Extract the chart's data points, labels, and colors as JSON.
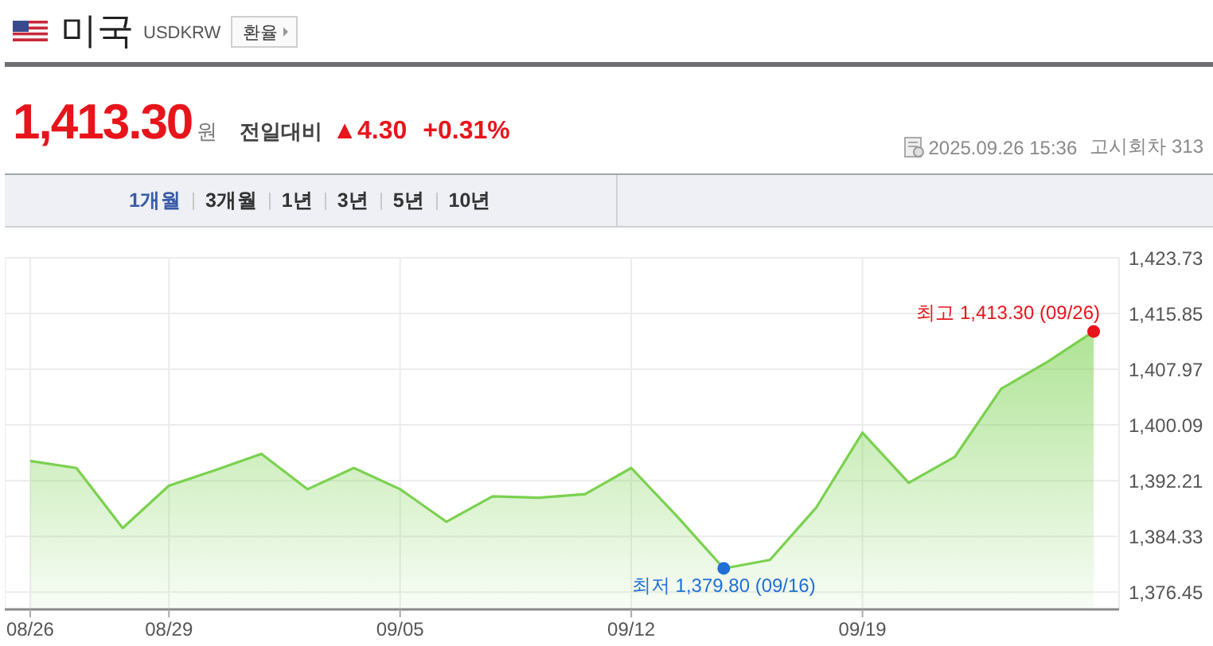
{
  "chart_data": {
    "type": "area",
    "title": "미국",
    "subtitle": "USDKRW",
    "categories": [
      "08/26",
      null,
      null,
      "08/29",
      null,
      null,
      null,
      null,
      "09/05",
      null,
      null,
      null,
      null,
      "09/12",
      null,
      null,
      null,
      null,
      "09/19",
      null,
      null,
      null,
      null,
      null
    ],
    "series": [
      {
        "color": "#7ad14f",
        "values": [
          1395.0,
          1394.0,
          1385.5,
          1391.5,
          1393.7,
          1396.0,
          1391.0,
          1394.0,
          1391.0,
          1386.4,
          1390.0,
          1389.8,
          1390.3,
          1394.0,
          1387.1,
          1379.8,
          1381.0,
          1388.4,
          1399.0,
          1391.9,
          1395.6,
          1405.2,
          1409.0,
          1413.3
        ]
      },
      {
        "type": "scatter",
        "colors": [
          null,
          null,
          null,
          null,
          null,
          null,
          null,
          null,
          null,
          null,
          null,
          null,
          null,
          null,
          null,
          "#1f6fd6",
          null,
          null,
          null,
          null,
          null,
          null,
          null,
          "#e8141b"
        ],
        "values": [
          null,
          null,
          null,
          null,
          null,
          null,
          null,
          null,
          null,
          null,
          null,
          null,
          null,
          null,
          null,
          1379.8,
          null,
          null,
          null,
          null,
          null,
          null,
          null,
          1413.3
        ]
      }
    ],
    "ylim": [
      1374.0,
      1423.73
    ],
    "yticks": [
      {
        "value": 1376.45,
        "label": "1,376.45"
      },
      {
        "value": 1384.33,
        "label": "1,384.33"
      },
      {
        "value": 1392.21,
        "label": "1,392.21"
      },
      {
        "value": 1400.09,
        "label": "1,400.09"
      },
      {
        "value": 1407.97,
        "label": "1,407.97"
      },
      {
        "value": 1415.85,
        "label": "1,415.85"
      },
      {
        "value": 1423.73,
        "label": "1,423.73"
      }
    ],
    "grid": true,
    "annotations": [
      "환율",
      "1,413.30",
      "원",
      "전일대비",
      "▲4.30",
      "+0.31%",
      "2025.09.26 15:36",
      "고시회차 313",
      "1개월",
      "3개월",
      "1년",
      "3년",
      "5년",
      "10년",
      "최저 1,379.80 (09/16)",
      "최고 1,413.30 (09/26)"
    ]
  }
}
